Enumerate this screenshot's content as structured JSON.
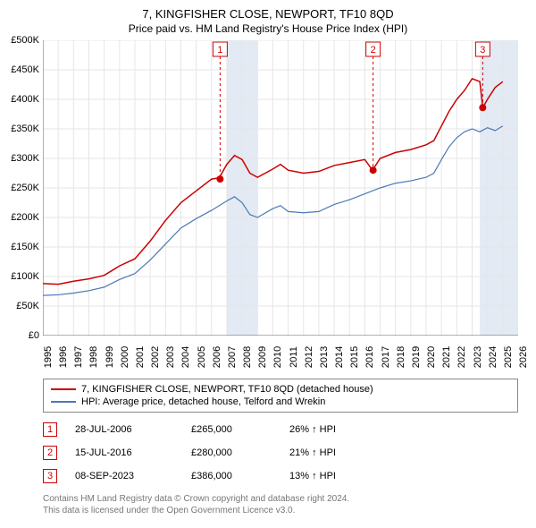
{
  "title": "7, KINGFISHER CLOSE, NEWPORT, TF10 8QD",
  "subtitle": "Price paid vs. HM Land Registry's House Price Index (HPI)",
  "chart": {
    "type": "line",
    "background_color": "#ffffff",
    "grid_color": "#e6e6e6",
    "axis_color": "#666666",
    "shade_color": "#e3eaf4",
    "shade_ranges": [
      [
        2007,
        2009
      ],
      [
        2023.5,
        2026
      ]
    ],
    "xlim": [
      1995,
      2026
    ],
    "ylim": [
      0,
      500000
    ],
    "yticks": [
      0,
      50000,
      100000,
      150000,
      200000,
      250000,
      300000,
      350000,
      400000,
      450000,
      500000
    ],
    "ytick_labels": [
      "£0",
      "£50K",
      "£100K",
      "£150K",
      "£200K",
      "£250K",
      "£300K",
      "£350K",
      "£400K",
      "£450K",
      "£500K"
    ],
    "xticks": [
      1995,
      1996,
      1997,
      1998,
      1999,
      2000,
      2001,
      2002,
      2003,
      2004,
      2005,
      2006,
      2007,
      2008,
      2009,
      2010,
      2011,
      2012,
      2013,
      2014,
      2015,
      2016,
      2017,
      2018,
      2019,
      2020,
      2021,
      2022,
      2023,
      2024,
      2025,
      2026
    ],
    "series": [
      {
        "name": "property",
        "color": "#cc0000",
        "width": 1.5,
        "label": "7, KINGFISHER CLOSE, NEWPORT, TF10 8QD (detached house)",
        "points": [
          [
            1995,
            88000
          ],
          [
            1996,
            87000
          ],
          [
            1997,
            92000
          ],
          [
            1998,
            96000
          ],
          [
            1999,
            102000
          ],
          [
            2000,
            118000
          ],
          [
            2001,
            130000
          ],
          [
            2002,
            160000
          ],
          [
            2003,
            195000
          ],
          [
            2004,
            225000
          ],
          [
            2005,
            245000
          ],
          [
            2006,
            265000
          ],
          [
            2006.5,
            267000
          ],
          [
            2007,
            290000
          ],
          [
            2007.5,
            305000
          ],
          [
            2008,
            298000
          ],
          [
            2008.5,
            275000
          ],
          [
            2009,
            268000
          ],
          [
            2010,
            282000
          ],
          [
            2010.5,
            290000
          ],
          [
            2011,
            280000
          ],
          [
            2012,
            275000
          ],
          [
            2013,
            278000
          ],
          [
            2014,
            288000
          ],
          [
            2015,
            293000
          ],
          [
            2016,
            298000
          ],
          [
            2016.5,
            280000
          ],
          [
            2017,
            300000
          ],
          [
            2018,
            310000
          ],
          [
            2019,
            315000
          ],
          [
            2020,
            323000
          ],
          [
            2020.5,
            330000
          ],
          [
            2021,
            355000
          ],
          [
            2021.5,
            380000
          ],
          [
            2022,
            400000
          ],
          [
            2022.5,
            415000
          ],
          [
            2023,
            435000
          ],
          [
            2023.5,
            430000
          ],
          [
            2023.7,
            386000
          ],
          [
            2024,
            400000
          ],
          [
            2024.5,
            420000
          ],
          [
            2025,
            430000
          ]
        ]
      },
      {
        "name": "hpi",
        "color": "#4b79b7",
        "width": 1.2,
        "label": "HPI: Average price, detached house, Telford and Wrekin",
        "points": [
          [
            1995,
            68000
          ],
          [
            1996,
            69000
          ],
          [
            1997,
            72000
          ],
          [
            1998,
            76000
          ],
          [
            1999,
            82000
          ],
          [
            2000,
            95000
          ],
          [
            2001,
            105000
          ],
          [
            2002,
            128000
          ],
          [
            2003,
            155000
          ],
          [
            2004,
            182000
          ],
          [
            2005,
            198000
          ],
          [
            2006,
            212000
          ],
          [
            2007,
            228000
          ],
          [
            2007.5,
            235000
          ],
          [
            2008,
            225000
          ],
          [
            2008.5,
            205000
          ],
          [
            2009,
            200000
          ],
          [
            2010,
            215000
          ],
          [
            2010.5,
            220000
          ],
          [
            2011,
            210000
          ],
          [
            2012,
            208000
          ],
          [
            2013,
            210000
          ],
          [
            2014,
            222000
          ],
          [
            2015,
            230000
          ],
          [
            2016,
            240000
          ],
          [
            2017,
            250000
          ],
          [
            2018,
            258000
          ],
          [
            2019,
            262000
          ],
          [
            2020,
            268000
          ],
          [
            2020.5,
            275000
          ],
          [
            2021,
            298000
          ],
          [
            2021.5,
            320000
          ],
          [
            2022,
            335000
          ],
          [
            2022.5,
            345000
          ],
          [
            2023,
            350000
          ],
          [
            2023.5,
            345000
          ],
          [
            2024,
            352000
          ],
          [
            2024.5,
            347000
          ],
          [
            2025,
            355000
          ]
        ]
      }
    ],
    "markers": [
      {
        "id": "1",
        "x": 2006.56,
        "y": 265000,
        "dot_color": "#cc0000",
        "box_color": "#cc0000"
      },
      {
        "id": "2",
        "x": 2016.54,
        "y": 280000,
        "dot_color": "#cc0000",
        "box_color": "#cc0000"
      },
      {
        "id": "3",
        "x": 2023.69,
        "y": 386000,
        "dot_color": "#cc0000",
        "box_color": "#cc0000"
      }
    ]
  },
  "sales": [
    {
      "id": "1",
      "date": "28-JUL-2006",
      "price": "£265,000",
      "diff": "26% ↑ HPI",
      "box_color": "#cc0000"
    },
    {
      "id": "2",
      "date": "15-JUL-2016",
      "price": "£280,000",
      "diff": "21% ↑ HPI",
      "box_color": "#cc0000"
    },
    {
      "id": "3",
      "date": "08-SEP-2023",
      "price": "£386,000",
      "diff": "13% ↑ HPI",
      "box_color": "#cc0000"
    }
  ],
  "footer": {
    "line1": "Contains HM Land Registry data © Crown copyright and database right 2024.",
    "line2": "This data is licensed under the Open Government Licence v3.0."
  }
}
